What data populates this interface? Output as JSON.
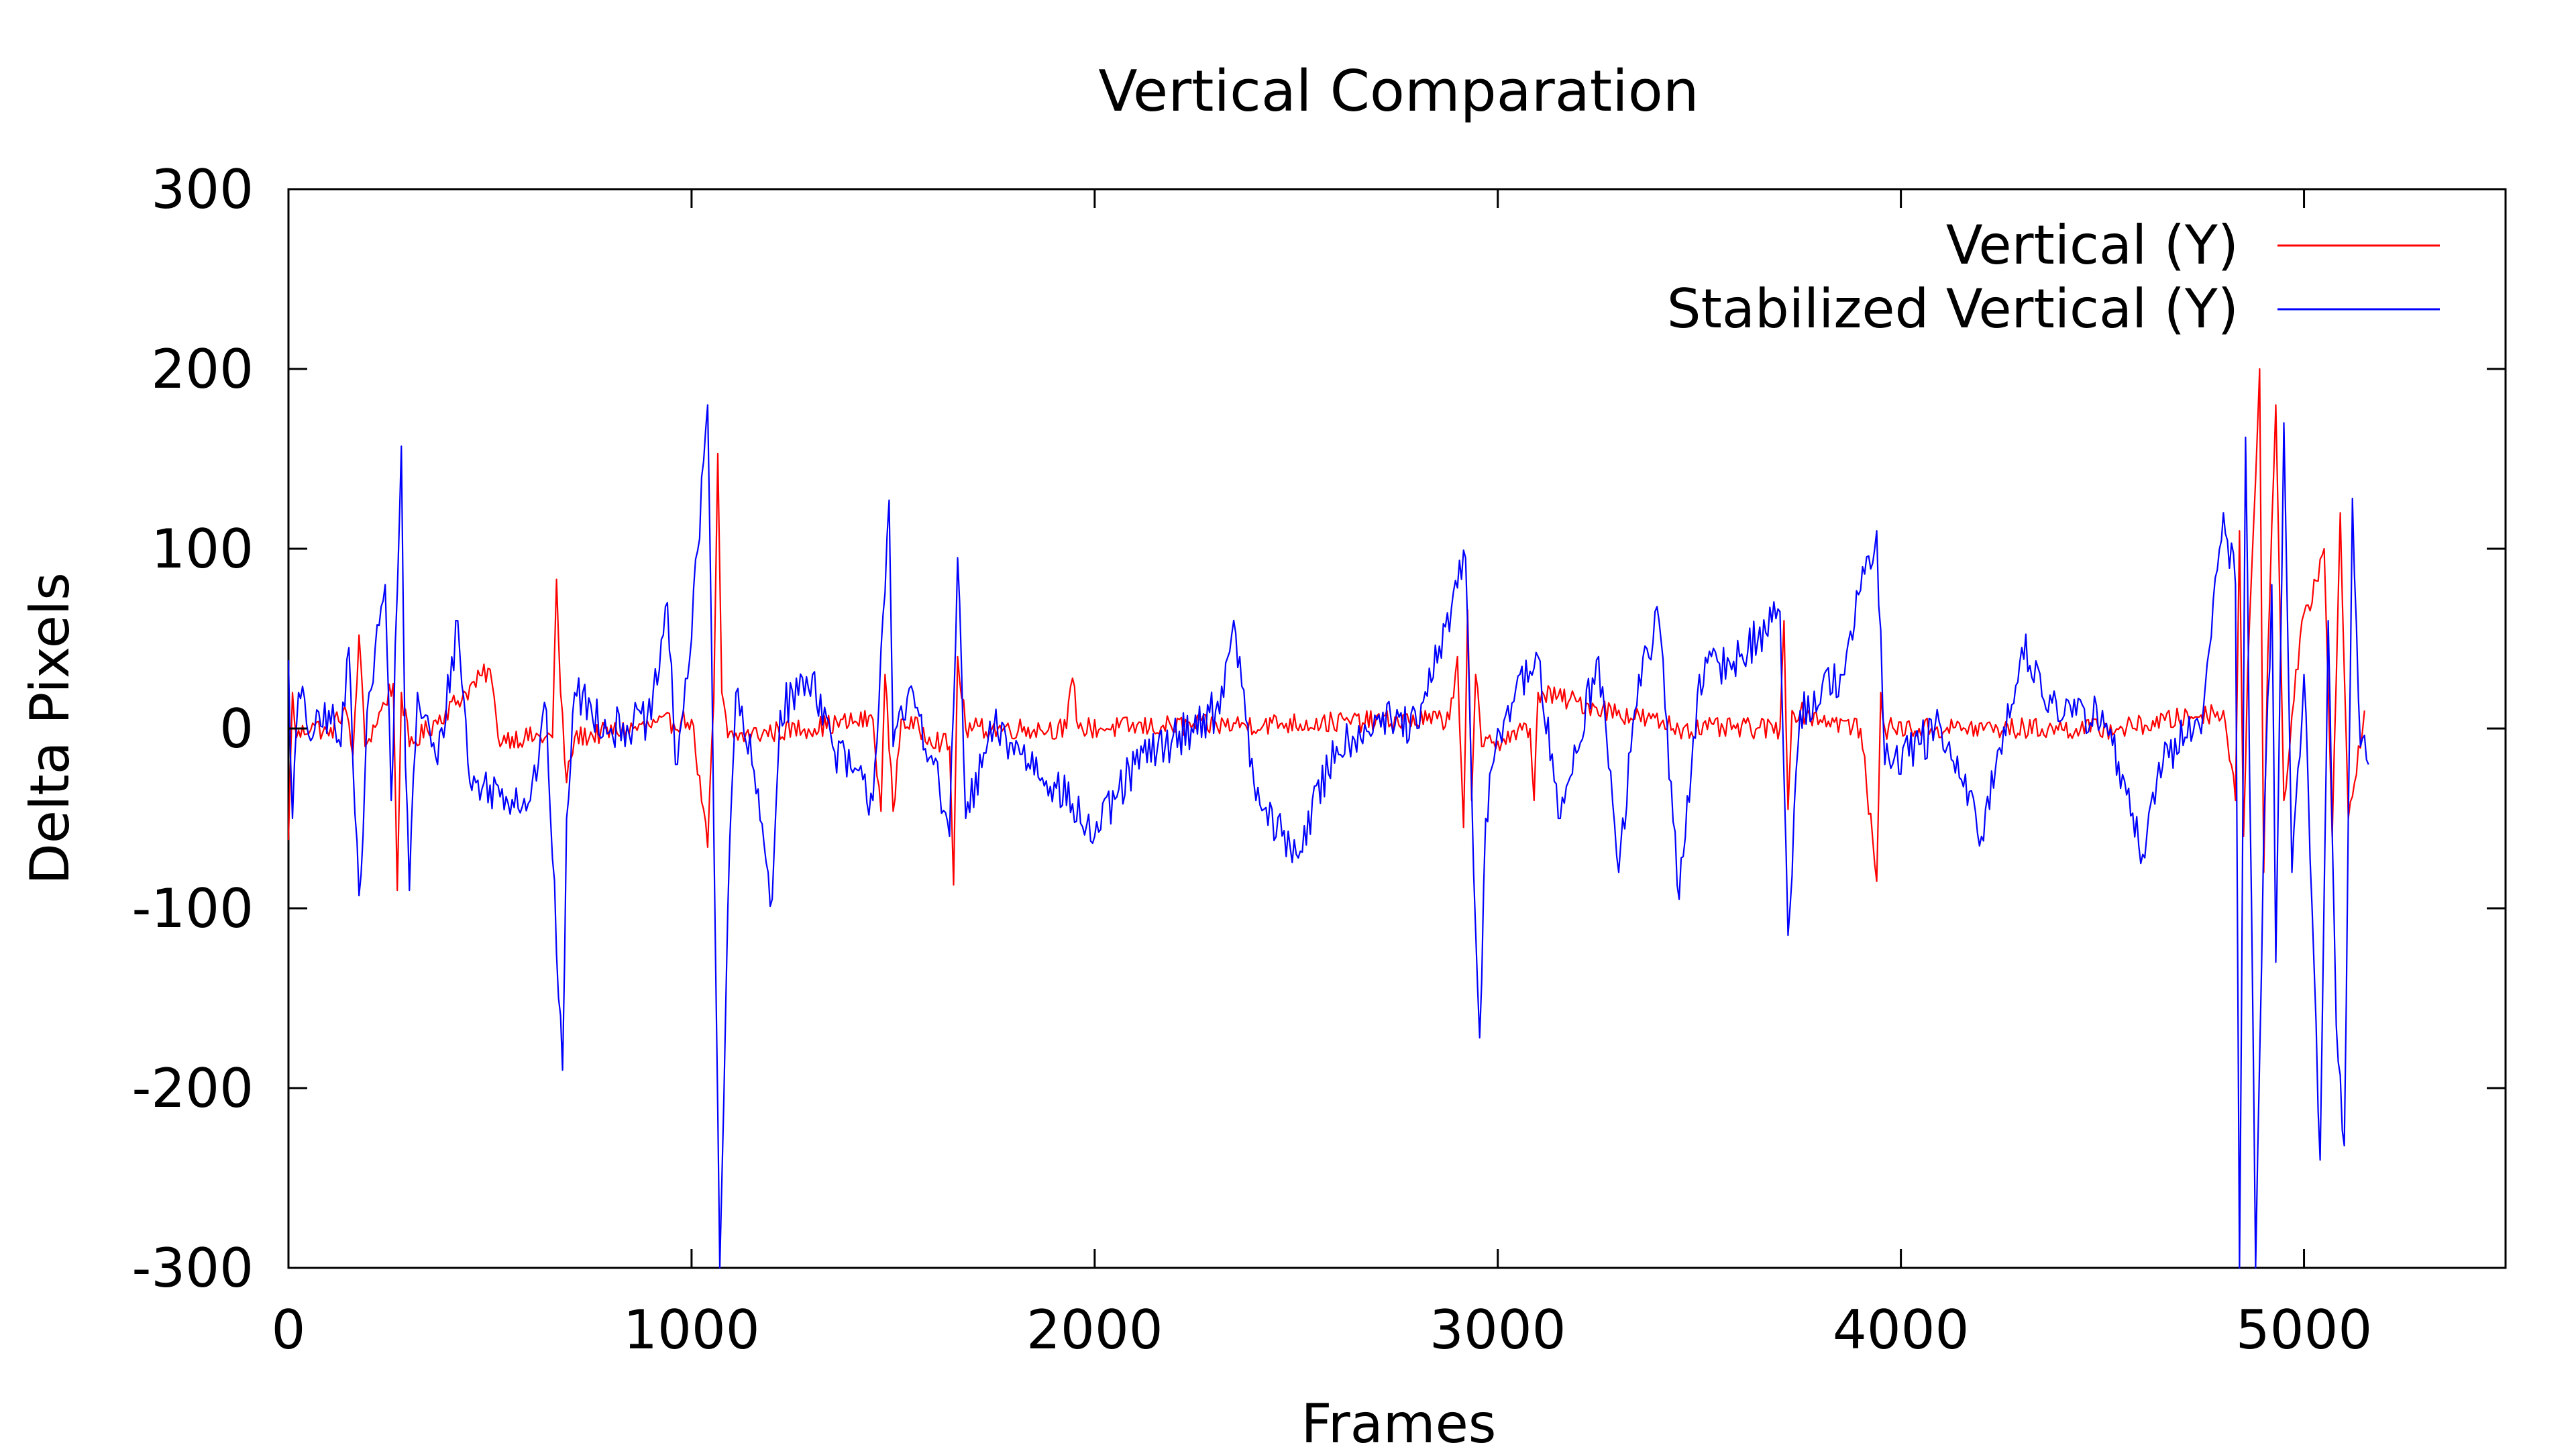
{
  "chart_data": {
    "type": "line",
    "title": "Vertical Comparation",
    "xlabel": "Frames",
    "ylabel": "Delta Pixels",
    "xlim": [
      0,
      5500
    ],
    "ylim": [
      -300,
      300
    ],
    "xticks": [
      0,
      1000,
      2000,
      3000,
      4000,
      5000
    ],
    "yticks": [
      -300,
      -200,
      -100,
      0,
      100,
      200,
      300
    ],
    "xtick_labels": [
      "0",
      "1000",
      "2000",
      "3000",
      "4000",
      "5000"
    ],
    "ytick_labels": [
      "-300",
      "-200",
      "-100",
      "0",
      "100",
      "200",
      "300"
    ],
    "grid": false,
    "legend_position": "top-right",
    "series": [
      {
        "name": "Vertical (Y)",
        "color": "#ff0000",
        "noise_amplitude": 6,
        "points": [
          [
            0,
            -62
          ],
          [
            10,
            20
          ],
          [
            20,
            -5
          ],
          [
            60,
            3
          ],
          [
            100,
            -4
          ],
          [
            140,
            12
          ],
          [
            160,
            -15
          ],
          [
            175,
            52
          ],
          [
            190,
            -10
          ],
          [
            260,
            25
          ],
          [
            270,
            -90
          ],
          [
            280,
            20
          ],
          [
            300,
            -10
          ],
          [
            500,
            33
          ],
          [
            520,
            -5
          ],
          [
            655,
            -5
          ],
          [
            665,
            83
          ],
          [
            675,
            20
          ],
          [
            690,
            -30
          ],
          [
            710,
            -5
          ],
          [
            1000,
            5
          ],
          [
            1040,
            -66
          ],
          [
            1055,
            15
          ],
          [
            1065,
            153
          ],
          [
            1075,
            20
          ],
          [
            1090,
            -5
          ],
          [
            1450,
            5
          ],
          [
            1470,
            -46
          ],
          [
            1480,
            30
          ],
          [
            1500,
            -46
          ],
          [
            1520,
            5
          ],
          [
            1640,
            -10
          ],
          [
            1650,
            -87
          ],
          [
            1660,
            40
          ],
          [
            1680,
            0
          ],
          [
            1930,
            0
          ],
          [
            1945,
            28
          ],
          [
            1960,
            0
          ],
          [
            2880,
            5
          ],
          [
            2900,
            40
          ],
          [
            2915,
            -55
          ],
          [
            2925,
            66
          ],
          [
            2935,
            -40
          ],
          [
            2945,
            30
          ],
          [
            2960,
            -10
          ],
          [
            3080,
            0
          ],
          [
            3090,
            -40
          ],
          [
            3100,
            20
          ],
          [
            3460,
            0
          ],
          [
            3700,
            0
          ],
          [
            3710,
            60
          ],
          [
            3720,
            -45
          ],
          [
            3730,
            10
          ],
          [
            3900,
            0
          ],
          [
            3940,
            -85
          ],
          [
            3950,
            20
          ],
          [
            3960,
            0
          ],
          [
            4550,
            0
          ],
          [
            4800,
            10
          ],
          [
            4830,
            -40
          ],
          [
            4840,
            110
          ],
          [
            4850,
            -60
          ],
          [
            4860,
            30
          ],
          [
            4890,
            200
          ],
          [
            4900,
            -80
          ],
          [
            4910,
            40
          ],
          [
            4930,
            180
          ],
          [
            4950,
            -40
          ],
          [
            4990,
            50
          ],
          [
            5050,
            100
          ],
          [
            5070,
            -60
          ],
          [
            5090,
            120
          ],
          [
            5110,
            -50
          ],
          [
            5150,
            10
          ]
        ]
      },
      {
        "name": "Stabilized Vertical (Y)",
        "color": "#0000ff",
        "noise_amplitude": 12,
        "points": [
          [
            0,
            38
          ],
          [
            10,
            -50
          ],
          [
            25,
            20
          ],
          [
            60,
            -5
          ],
          [
            100,
            10
          ],
          [
            130,
            -10
          ],
          [
            150,
            45
          ],
          [
            175,
            -93
          ],
          [
            200,
            20
          ],
          [
            240,
            80
          ],
          [
            255,
            -40
          ],
          [
            280,
            157
          ],
          [
            290,
            -20
          ],
          [
            300,
            -90
          ],
          [
            320,
            20
          ],
          [
            370,
            -20
          ],
          [
            420,
            60
          ],
          [
            450,
            -30
          ],
          [
            600,
            -40
          ],
          [
            640,
            10
          ],
          [
            670,
            -150
          ],
          [
            680,
            -190
          ],
          [
            690,
            -50
          ],
          [
            710,
            20
          ],
          [
            800,
            0
          ],
          [
            900,
            5
          ],
          [
            940,
            70
          ],
          [
            960,
            -20
          ],
          [
            1000,
            50
          ],
          [
            1040,
            180
          ],
          [
            1050,
            40
          ],
          [
            1070,
            -300
          ],
          [
            1090,
            -100
          ],
          [
            1110,
            20
          ],
          [
            1150,
            -20
          ],
          [
            1200,
            -95
          ],
          [
            1220,
            10
          ],
          [
            1300,
            30
          ],
          [
            1350,
            -10
          ],
          [
            1450,
            -40
          ],
          [
            1490,
            127
          ],
          [
            1500,
            -10
          ],
          [
            1550,
            20
          ],
          [
            1600,
            -20
          ],
          [
            1640,
            -60
          ],
          [
            1660,
            95
          ],
          [
            1680,
            -50
          ],
          [
            1750,
            0
          ],
          [
            1900,
            -30
          ],
          [
            2000,
            -60
          ],
          [
            2100,
            -20
          ],
          [
            2300,
            10
          ],
          [
            2350,
            53
          ],
          [
            2400,
            -40
          ],
          [
            2500,
            -70
          ],
          [
            2600,
            -10
          ],
          [
            2700,
            5
          ],
          [
            2800,
            0
          ],
          [
            2920,
            95
          ],
          [
            2940,
            -80
          ],
          [
            2955,
            -172
          ],
          [
            2970,
            -50
          ],
          [
            3000,
            0
          ],
          [
            3100,
            40
          ],
          [
            3150,
            -50
          ],
          [
            3250,
            40
          ],
          [
            3300,
            -80
          ],
          [
            3350,
            30
          ],
          [
            3400,
            60
          ],
          [
            3450,
            -95
          ],
          [
            3500,
            30
          ],
          [
            3600,
            40
          ],
          [
            3700,
            65
          ],
          [
            3720,
            -115
          ],
          [
            3750,
            10
          ],
          [
            3850,
            30
          ],
          [
            3940,
            110
          ],
          [
            3960,
            -20
          ],
          [
            4100,
            0
          ],
          [
            4200,
            -60
          ],
          [
            4300,
            45
          ],
          [
            4400,
            5
          ],
          [
            4500,
            10
          ],
          [
            4600,
            -70
          ],
          [
            4650,
            -20
          ],
          [
            4750,
            10
          ],
          [
            4800,
            120
          ],
          [
            4830,
            80
          ],
          [
            4840,
            -300
          ],
          [
            4855,
            162
          ],
          [
            4870,
            -100
          ],
          [
            4880,
            -300
          ],
          [
            4900,
            -60
          ],
          [
            4920,
            80
          ],
          [
            4930,
            -130
          ],
          [
            4950,
            170
          ],
          [
            4970,
            -80
          ],
          [
            5000,
            30
          ],
          [
            5020,
            -100
          ],
          [
            5040,
            -240
          ],
          [
            5060,
            60
          ],
          [
            5080,
            -165
          ],
          [
            5100,
            -232
          ],
          [
            5120,
            128
          ],
          [
            5140,
            -10
          ],
          [
            5160,
            -20
          ]
        ]
      }
    ]
  }
}
